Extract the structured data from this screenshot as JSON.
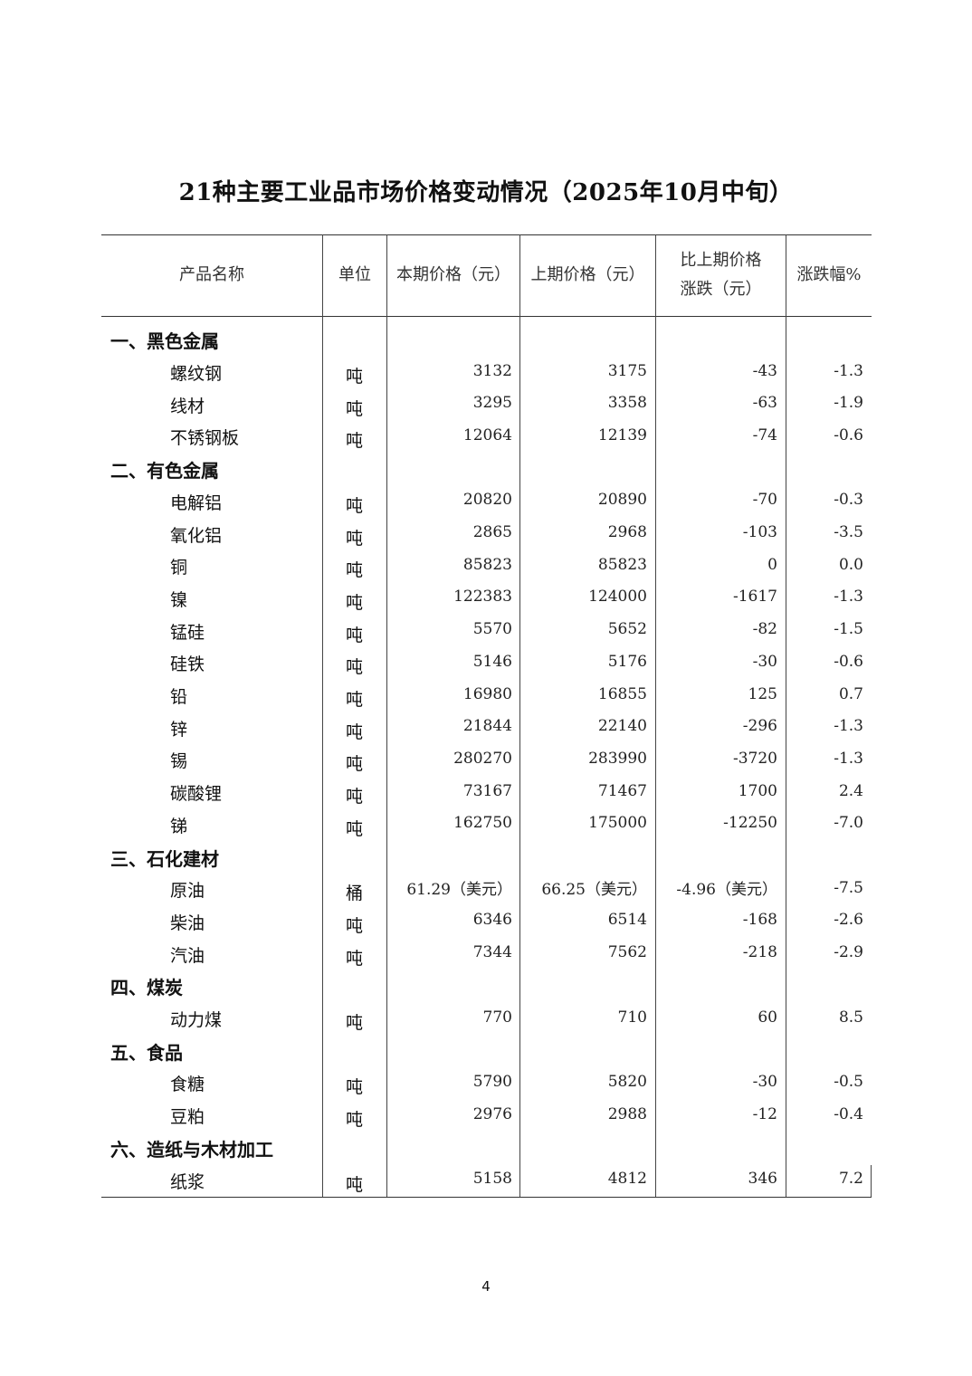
{
  "title": "21种主要工业品市场价格变动情况（2025年10月中旬）",
  "headers": [
    "产品名称",
    "单位",
    "本期价格（元）",
    "上期价格（元）",
    "比上期价格\n涨跌（元）",
    "涨跌幅%"
  ],
  "rows": [
    {
      "section": "一、黑色金属"
    },
    {
      "name": "螺纹钢",
      "unit": "吨",
      "current": "3132",
      "previous": "3175",
      "change": "-43",
      "pct": "-1.3"
    },
    {
      "name": "线材",
      "unit": "吨",
      "current": "3295",
      "previous": "3358",
      "change": "-63",
      "pct": "-1.9"
    },
    {
      "name": "不锈钢板",
      "unit": "吨",
      "current": "12064",
      "previous": "12139",
      "change": "-74",
      "pct": "-0.6"
    },
    {
      "section": "二、有色金属"
    },
    {
      "name": "电解铝",
      "unit": "吨",
      "current": "20820",
      "previous": "20890",
      "change": "-70",
      "pct": "-0.3"
    },
    {
      "name": "氧化铝",
      "unit": "吨",
      "current": "2865",
      "previous": "2968",
      "change": "-103",
      "pct": "-3.5"
    },
    {
      "name": "铜",
      "unit": "吨",
      "current": "85823",
      "previous": "85823",
      "change": "0",
      "pct": "0.0"
    },
    {
      "name": "镍",
      "unit": "吨",
      "current": "122383",
      "previous": "124000",
      "change": "-1617",
      "pct": "-1.3"
    },
    {
      "name": "锰硅",
      "unit": "吨",
      "current": "5570",
      "previous": "5652",
      "change": "-82",
      "pct": "-1.5"
    },
    {
      "name": "硅铁",
      "unit": "吨",
      "current": "5146",
      "previous": "5176",
      "change": "-30",
      "pct": "-0.6"
    },
    {
      "name": "铅",
      "unit": "吨",
      "current": "16980",
      "previous": "16855",
      "change": "125",
      "pct": "0.7"
    },
    {
      "name": "锌",
      "unit": "吨",
      "current": "21844",
      "previous": "22140",
      "change": "-296",
      "pct": "-1.3"
    },
    {
      "name": "锡",
      "unit": "吨",
      "current": "280270",
      "previous": "283990",
      "change": "-3720",
      "pct": "-1.3"
    },
    {
      "name": "碳酸锂",
      "unit": "吨",
      "current": "73167",
      "previous": "71467",
      "change": "1700",
      "pct": "2.4"
    },
    {
      "name": "锑",
      "unit": "吨",
      "current": "162750",
      "previous": "175000",
      "change": "-12250",
      "pct": "-7.0"
    },
    {
      "section": "三、石化建材"
    },
    {
      "name": "原油",
      "unit": "桶",
      "current": "61.29（美元）",
      "previous": "66.25（美元）",
      "change": "-4.96（美元）",
      "pct": "-7.5"
    },
    {
      "name": "柴油",
      "unit": "吨",
      "current": "6346",
      "previous": "6514",
      "change": "-168",
      "pct": "-2.6"
    },
    {
      "name": "汽油",
      "unit": "吨",
      "current": "7344",
      "previous": "7562",
      "change": "-218",
      "pct": "-2.9"
    },
    {
      "section": "四、煤炭"
    },
    {
      "name": "动力煤",
      "unit": "吨",
      "current": "770",
      "previous": "710",
      "change": "60",
      "pct": "8.5"
    },
    {
      "section": "五、食品"
    },
    {
      "name": "食糖",
      "unit": "吨",
      "current": "5790",
      "previous": "5820",
      "change": "-30",
      "pct": "-0.5"
    },
    {
      "name": "豆粕",
      "unit": "吨",
      "current": "2976",
      "previous": "2988",
      "change": "-12",
      "pct": "-0.4"
    },
    {
      "section": "六、造纸与木材加工"
    },
    {
      "name": "纸浆",
      "unit": "吨",
      "current": "5158",
      "previous": "4812",
      "change": "346",
      "pct": "7.2"
    }
  ],
  "page_number": "4"
}
